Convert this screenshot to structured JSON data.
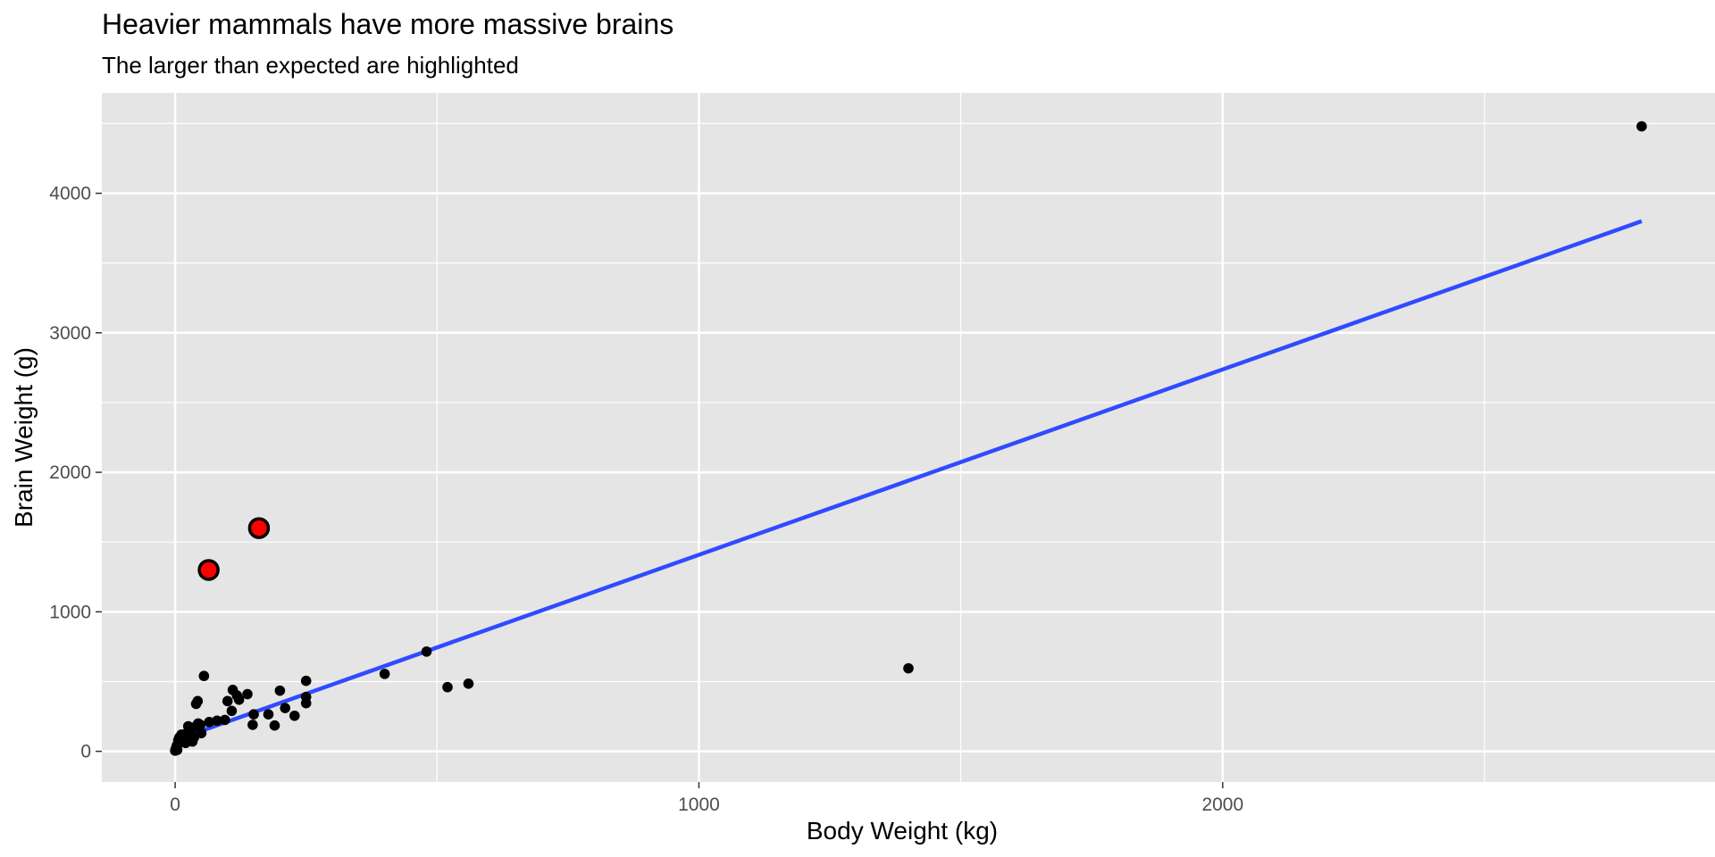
{
  "chart_data": {
    "type": "scatter",
    "title": "Heavier mammals have more massive brains",
    "subtitle": "The larger than expected are highlighted",
    "xlabel": "Body Weight (kg)",
    "ylabel": "Brain Weight (g)",
    "xlim": [
      -140,
      2940
    ],
    "ylim": [
      -220,
      4720
    ],
    "x_ticks": [
      0,
      1000,
      2000
    ],
    "y_ticks": [
      0,
      1000,
      2000,
      3000,
      4000
    ],
    "grid": true,
    "legend": "none",
    "colors": {
      "panel_background": "#e5e5e5",
      "grid": "#ffffff",
      "point": "#000000",
      "highlight_fill": "#ff0000",
      "highlight_stroke": "#000000",
      "trend_line": "#2f4bff",
      "axis_text": "#4d4d4d",
      "title_text": "#000000"
    },
    "series": [
      {
        "values": [
          {
            "x": 0,
            "y": 5
          },
          {
            "x": 1,
            "y": 15
          },
          {
            "x": 2,
            "y": 25
          },
          {
            "x": 3,
            "y": 40
          },
          {
            "x": 4,
            "y": 10
          },
          {
            "x": 5,
            "y": 50
          },
          {
            "x": 6,
            "y": 80
          },
          {
            "x": 7,
            "y": 60
          },
          {
            "x": 8,
            "y": 100
          },
          {
            "x": 10,
            "y": 90
          },
          {
            "x": 12,
            "y": 120
          },
          {
            "x": 15,
            "y": 70
          },
          {
            "x": 18,
            "y": 110
          },
          {
            "x": 20,
            "y": 60
          },
          {
            "x": 22,
            "y": 130
          },
          {
            "x": 25,
            "y": 180
          },
          {
            "x": 28,
            "y": 85
          },
          {
            "x": 30,
            "y": 140
          },
          {
            "x": 33,
            "y": 70
          },
          {
            "x": 36,
            "y": 100
          },
          {
            "x": 40,
            "y": 180
          },
          {
            "x": 40,
            "y": 340
          },
          {
            "x": 44,
            "y": 200
          },
          {
            "x": 48,
            "y": 190
          },
          {
            "x": 43,
            "y": 360
          },
          {
            "x": 50,
            "y": 130
          },
          {
            "x": 55,
            "y": 540
          },
          {
            "x": 65,
            "y": 210
          },
          {
            "x": 80,
            "y": 220
          },
          {
            "x": 95,
            "y": 225
          },
          {
            "x": 100,
            "y": 360
          },
          {
            "x": 108,
            "y": 290
          },
          {
            "x": 110,
            "y": 440
          },
          {
            "x": 118,
            "y": 400
          },
          {
            "x": 122,
            "y": 370
          },
          {
            "x": 138,
            "y": 410
          },
          {
            "x": 148,
            "y": 190
          },
          {
            "x": 150,
            "y": 265
          },
          {
            "x": 178,
            "y": 265
          },
          {
            "x": 190,
            "y": 185
          },
          {
            "x": 200,
            "y": 435
          },
          {
            "x": 210,
            "y": 310
          },
          {
            "x": 228,
            "y": 255
          },
          {
            "x": 250,
            "y": 345
          },
          {
            "x": 250,
            "y": 390
          },
          {
            "x": 250,
            "y": 505
          },
          {
            "x": 400,
            "y": 555
          },
          {
            "x": 480,
            "y": 715
          },
          {
            "x": 520,
            "y": 460
          },
          {
            "x": 560,
            "y": 485
          },
          {
            "x": 1400,
            "y": 595
          },
          {
            "x": 2800,
            "y": 4480
          }
        ]
      },
      {
        "highlight": true,
        "values": [
          {
            "x": 64,
            "y": 1300
          },
          {
            "x": 160,
            "y": 1600
          }
        ]
      }
    ],
    "trend_line": {
      "x": [
        0,
        2800
      ],
      "y": [
        80,
        3800
      ]
    }
  }
}
